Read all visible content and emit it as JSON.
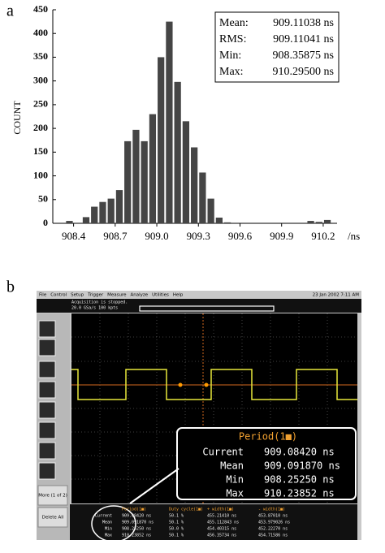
{
  "chart_data": {
    "type": "histogram",
    "panel_label": "a",
    "y_label": "COUNT",
    "x_unit": "/ns",
    "bins": [
      908.34,
      908.4,
      908.46,
      908.52,
      908.58,
      908.64,
      908.7,
      908.76,
      908.82,
      908.88,
      908.94,
      909.0,
      909.06,
      909.12,
      909.18,
      909.24,
      909.3,
      909.36,
      909.42,
      909.48,
      909.54,
      909.6,
      909.66,
      909.72,
      909.78,
      909.84,
      909.9,
      909.96,
      910.02,
      910.08,
      910.14,
      910.2,
      910.26
    ],
    "values": [
      5,
      0,
      13,
      35,
      45,
      52,
      70,
      173,
      197,
      173,
      230,
      350,
      425,
      298,
      215,
      160,
      107,
      52,
      12,
      2,
      0,
      0,
      0,
      0,
      0,
      0,
      0,
      0,
      0,
      5,
      3,
      7
    ],
    "color": "#454545",
    "xlim": [
      908.25,
      910.3
    ],
    "xticks": [
      908.4,
      908.7,
      {
        "value": 909,
        "label": "909.0"
      },
      909.3,
      909.6,
      909.9,
      910.2
    ],
    "ylim": [
      0,
      450
    ],
    "yticks": [
      0,
      50,
      100,
      150,
      200,
      250,
      300,
      350,
      400,
      450
    ],
    "stats": [
      {
        "label": "Mean:",
        "value": "909.11038 ns"
      },
      {
        "label": "RMS:",
        "value": "909.11041 ns"
      },
      {
        "label": "Min:",
        "value": "908.35875 ns"
      },
      {
        "label": "Max:",
        "value": "910.29500 ns"
      }
    ]
  },
  "screenshot": {
    "panel_label": "b",
    "menu": [
      "File",
      "Control",
      "Setup",
      "Trigger",
      "Measure",
      "Analyze",
      "Utilities",
      "Help"
    ],
    "datetime": "23 Jan 2002 7:11 AM",
    "status": [
      "Acquisition is stopped.",
      "20.0 GSa/s   100 kpts"
    ],
    "buttons": [
      "More (1 of 2)",
      "Delete All"
    ],
    "zoom": {
      "header": "Period(1■)",
      "rows": [
        [
          "Current",
          "909.08420 ns"
        ],
        [
          "Mean",
          "909.091870 ns"
        ],
        [
          "Min",
          "908.25250 ns"
        ],
        [
          "Max",
          "910.23852 ns"
        ]
      ]
    },
    "table": {
      "headers": [
        "Period(1■)",
        "Duty cycle(1■)",
        "+ width(1■)",
        "- width(1■)"
      ],
      "rows": [
        [
          "Current",
          "909.08420 ns",
          "50.1 %",
          "455.21410 ns",
          "453.87010 ns"
        ],
        [
          "Mean",
          "909.091870 ns",
          "50.1 %",
          "455.112843 ns",
          "453.979026 ns"
        ],
        [
          "Min",
          "908.25250 ns",
          "50.0 %",
          "454.40315 ns",
          "452.22270 ns"
        ],
        [
          "Max",
          "910.23852 ns",
          "50.1 %",
          "456.35734 ns",
          "454.71586 ns"
        ]
      ]
    }
  }
}
